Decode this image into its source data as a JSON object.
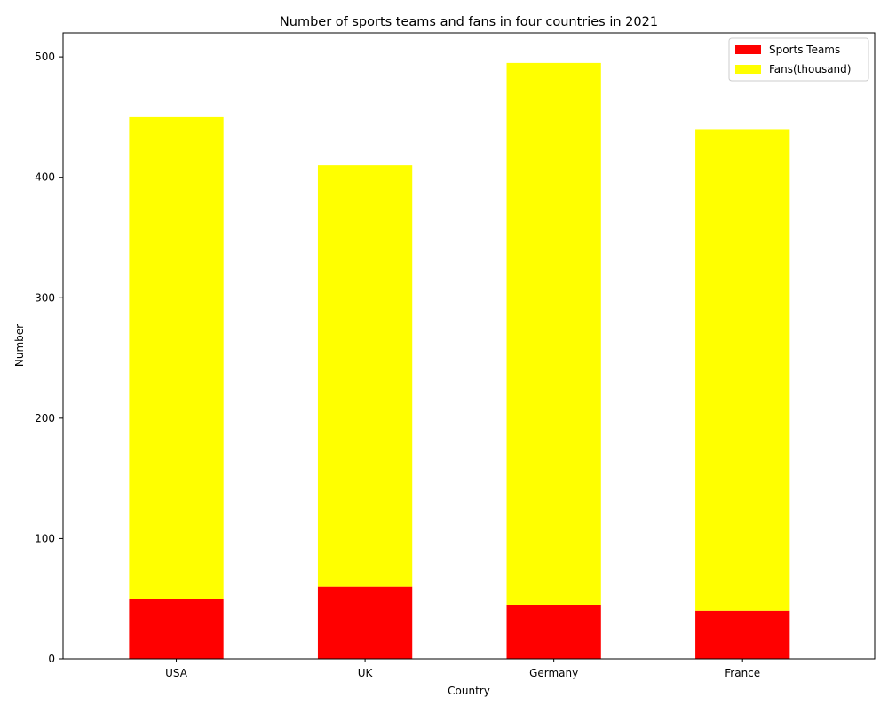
{
  "chart_data": {
    "type": "bar",
    "stacked": true,
    "title": "Number of sports teams and fans in four countries in 2021",
    "xlabel": "Country",
    "ylabel": "Number",
    "categories": [
      "USA",
      "UK",
      "Germany",
      "France"
    ],
    "series": [
      {
        "name": "Sports Teams",
        "values": [
          50,
          60,
          45,
          40
        ],
        "color": "#ff0000"
      },
      {
        "name": "Fans(thousand)",
        "values": [
          400,
          350,
          450,
          400
        ],
        "color": "#ffff00"
      }
    ],
    "ylim": [
      0,
      520
    ],
    "yticks": [
      0,
      100,
      200,
      300,
      400,
      500
    ],
    "grid": false,
    "legend_position": "top-right"
  }
}
